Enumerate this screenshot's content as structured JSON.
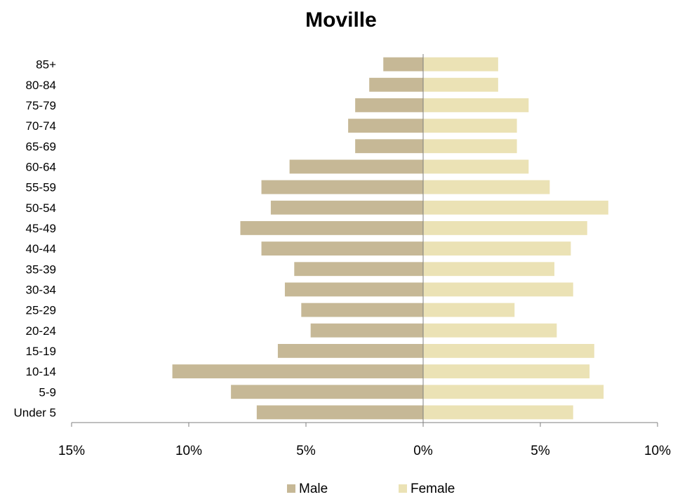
{
  "chart_data": {
    "type": "bar",
    "orientation": "horizontal",
    "layout": "population-pyramid",
    "title": "Moville",
    "categories": [
      "85+",
      "80-84",
      "75-79",
      "70-74",
      "65-69",
      "60-64",
      "55-59",
      "50-54",
      "45-49",
      "40-44",
      "35-39",
      "30-34",
      "25-29",
      "20-24",
      "15-19",
      "10-14",
      "5-9",
      "Under 5"
    ],
    "series": [
      {
        "name": "Male",
        "color": "#c6b896",
        "side": "left",
        "values": [
          1.7,
          2.3,
          2.9,
          3.2,
          2.9,
          5.7,
          6.9,
          6.5,
          7.8,
          6.9,
          5.5,
          5.9,
          5.2,
          4.8,
          6.2,
          10.7,
          8.2,
          7.1
        ]
      },
      {
        "name": "Female",
        "color": "#ebe2b5",
        "side": "right",
        "values": [
          3.2,
          3.2,
          4.5,
          4.0,
          4.0,
          4.5,
          5.4,
          7.9,
          7.0,
          6.3,
          5.6,
          6.4,
          3.9,
          5.7,
          7.3,
          7.1,
          7.7,
          6.4
        ]
      }
    ],
    "xlim": [
      -15,
      10
    ],
    "xticks": [
      -15,
      -10,
      -5,
      0,
      5,
      10
    ],
    "xtick_labels": [
      "15%",
      "10%",
      "5%",
      "0%",
      "5%",
      "10%"
    ],
    "grid": false,
    "legend_position": "bottom"
  }
}
